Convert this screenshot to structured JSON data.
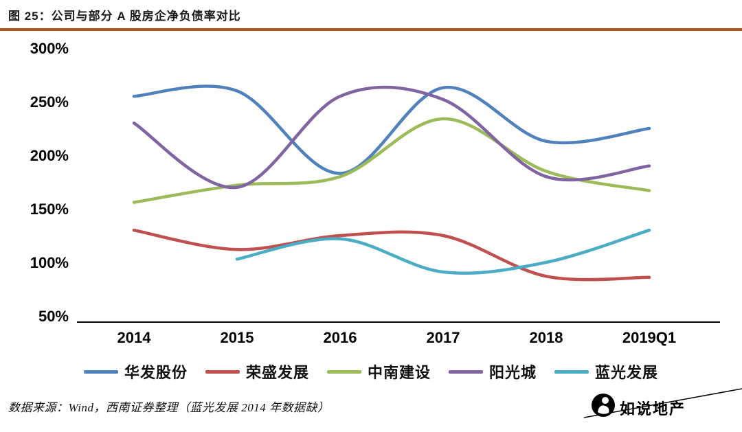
{
  "header": {
    "title": "图 25：公司与部分 A 股房企净负债率对比"
  },
  "footer": {
    "source": "数据来源：Wind，西南证券整理（蓝光发展 2014 年数据缺）"
  },
  "watermark": {
    "text": "如说地产",
    "logo": "person-icon"
  },
  "chart_data": {
    "type": "line",
    "title": "公司与部分 A 股房企净负债率对比",
    "categories": [
      "2014",
      "2015",
      "2016",
      "2017",
      "2018",
      "2019Q1"
    ],
    "series": [
      {
        "name": "华发股份",
        "color": "#4F81BD",
        "values": [
          255,
          260,
          183,
          263,
          213,
          225
        ]
      },
      {
        "name": "荣盛发展",
        "color": "#C0504D",
        "values": [
          130,
          112,
          125,
          125,
          87,
          86
        ]
      },
      {
        "name": "中南建设",
        "color": "#9BBB59",
        "values": [
          156,
          172,
          180,
          234,
          185,
          167
        ]
      },
      {
        "name": "阳光城",
        "color": "#8064A2",
        "values": [
          230,
          170,
          255,
          252,
          180,
          190
        ]
      },
      {
        "name": "蓝光发展",
        "color": "#4BACC6",
        "values": [
          null,
          103,
          122,
          91,
          100,
          130
        ]
      }
    ],
    "ylim": [
      50,
      300
    ],
    "ytick_values": [
      300,
      250,
      200,
      150,
      100,
      50
    ],
    "yticks": [
      "300%",
      "250%",
      "200%",
      "150%",
      "100%",
      "50%"
    ],
    "xlabel": "",
    "ylabel": "",
    "grid": false,
    "legend_position": "bottom",
    "note": "蓝光发展 2014 年数据缺"
  }
}
